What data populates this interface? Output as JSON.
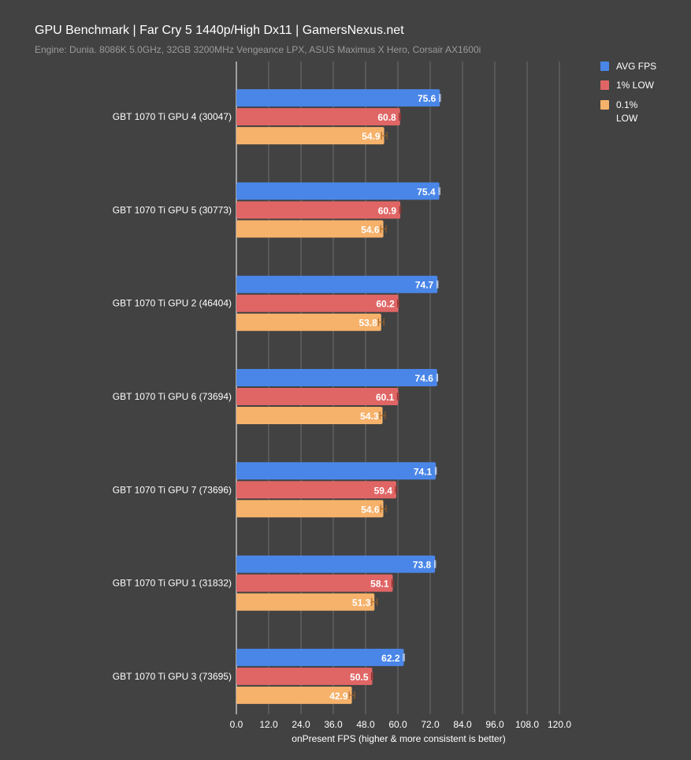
{
  "chart_data": {
    "type": "bar",
    "orientation": "horizontal",
    "title": "GPU Benchmark | Far Cry 5 1440p/High Dx11 | GamersNexus.net",
    "subtitle": "Engine: Dunia. 8086K 5.0GHz, 32GB 3200MHz Vengeance LPX, ASUS Maximus X Hero, Corsair AX1600i",
    "xlabel": "onPresent FPS (higher & more consistent is better)",
    "ylabel": "",
    "xlim": [
      0,
      120
    ],
    "ticks": [
      "0.0",
      "12.0",
      "24.0",
      "36.0",
      "48.0",
      "60.0",
      "72.0",
      "84.0",
      "96.0",
      "108.0",
      "120.0"
    ],
    "grid": true,
    "legend_position": "top-right",
    "categories": [
      "GBT 1070 Ti GPU 4 (30047)",
      "GBT 1070 Ti GPU 5 (30773)",
      "GBT 1070 Ti GPU 2 (46404)",
      "GBT 1070 Ti GPU 6 (73694)",
      "GBT 1070 Ti GPU 7 (73696)",
      "GBT 1070 Ti GPU 1 (31832)",
      "GBT 1070 Ti GPU 3 (73695)"
    ],
    "series": [
      {
        "name": "AVG FPS",
        "color": "#4a86e8",
        "values": [
          75.6,
          75.4,
          74.7,
          74.6,
          74.1,
          73.8,
          62.2
        ],
        "error": 0.2
      },
      {
        "name": "1% LOW",
        "color": "#e06666",
        "values": [
          60.8,
          60.9,
          60.2,
          60.1,
          59.4,
          58.1,
          50.5
        ],
        "error": 0.3
      },
      {
        "name": "0.1% LOW",
        "color": "#f6b26b",
        "values": [
          54.9,
          54.6,
          53.8,
          54.3,
          54.6,
          51.3,
          42.9
        ],
        "error": 1.0
      }
    ]
  }
}
